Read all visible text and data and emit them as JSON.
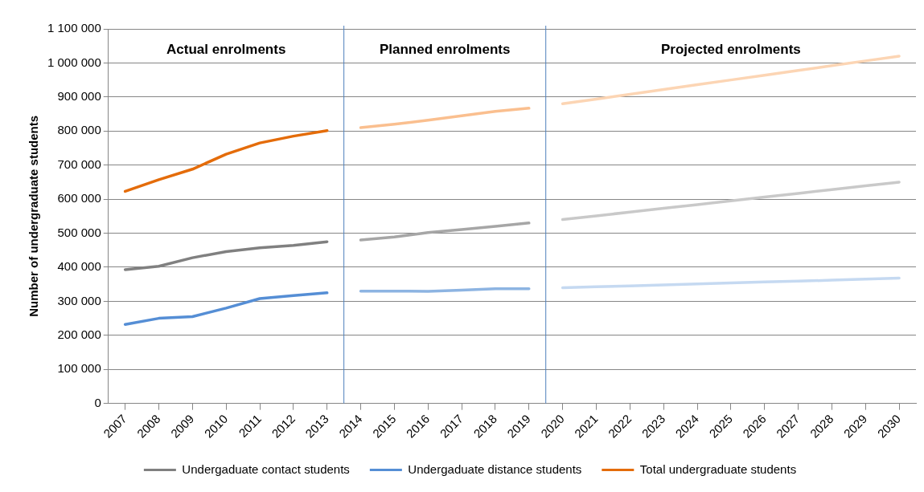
{
  "chart_data": {
    "type": "line",
    "ylabel": "Number of undergraduate students",
    "x": [
      2007,
      2008,
      2009,
      2010,
      2011,
      2012,
      2013,
      2014,
      2015,
      2016,
      2017,
      2018,
      2019,
      2020,
      2021,
      2022,
      2023,
      2024,
      2025,
      2026,
      2027,
      2028,
      2029,
      2030
    ],
    "series": [
      {
        "name": "Undergaduate contact students",
        "color": "#808080",
        "values": [
          393000,
          403000,
          428000,
          446000,
          457000,
          464000,
          475000,
          null,
          null,
          null,
          null,
          null,
          null,
          null,
          null,
          null,
          null,
          null,
          null,
          null,
          null,
          null,
          null,
          null
        ]
      },
      {
        "name": "Undergaduate distance students",
        "color": "#558ed5",
        "values": [
          232000,
          250000,
          255000,
          280000,
          308000,
          317000,
          325000,
          null,
          null,
          null,
          null,
          null,
          null,
          null,
          null,
          null,
          null,
          null,
          null,
          null,
          null,
          null,
          null,
          null
        ]
      },
      {
        "name": "Total undergraduate students",
        "color": "#e46c0a",
        "values": [
          623000,
          657000,
          688000,
          732000,
          765000,
          785000,
          801000,
          null,
          null,
          null,
          null,
          null,
          null,
          null,
          null,
          null,
          null,
          null,
          null,
          null,
          null,
          null,
          null,
          null
        ]
      },
      {
        "color": "#a6a6a6",
        "values": [
          null,
          null,
          null,
          null,
          null,
          null,
          null,
          480000,
          489000,
          502000,
          511000,
          520000,
          530000,
          null,
          null,
          null,
          null,
          null,
          null,
          null,
          null,
          null,
          null,
          null
        ]
      },
      {
        "color": "#8db4e2",
        "values": [
          null,
          null,
          null,
          null,
          null,
          null,
          null,
          330000,
          330000,
          329000,
          333000,
          337000,
          337000,
          null,
          null,
          null,
          null,
          null,
          null,
          null,
          null,
          null,
          null,
          null
        ]
      },
      {
        "color": "#fabf8f",
        "values": [
          null,
          null,
          null,
          null,
          null,
          null,
          null,
          810000,
          820000,
          832000,
          845000,
          858000,
          867000,
          null,
          null,
          null,
          null,
          null,
          null,
          null,
          null,
          null,
          null,
          null
        ]
      },
      {
        "color": "#c9c9c9",
        "values": [
          null,
          null,
          null,
          null,
          null,
          null,
          null,
          null,
          null,
          null,
          null,
          null,
          null,
          540000,
          551000,
          562000,
          573000,
          584000,
          595000,
          606000,
          617000,
          628000,
          639000,
          650000
        ]
      },
      {
        "color": "#c5d9f1",
        "values": [
          null,
          null,
          null,
          null,
          null,
          null,
          null,
          null,
          null,
          null,
          null,
          null,
          null,
          340000,
          343000,
          345000,
          348000,
          351000,
          354000,
          357000,
          359000,
          362000,
          365000,
          368000
        ]
      },
      {
        "color": "#fcd5b4",
        "values": [
          null,
          null,
          null,
          null,
          null,
          null,
          null,
          null,
          null,
          null,
          null,
          null,
          null,
          880000,
          894000,
          908000,
          922000,
          936000,
          950000,
          964000,
          978000,
          992000,
          1006000,
          1020000
        ]
      }
    ],
    "xlim": [
      2006.5,
      2030.5
    ],
    "xticks": [
      2007,
      2008,
      2009,
      2010,
      2011,
      2012,
      2013,
      2014,
      2015,
      2016,
      2017,
      2018,
      2019,
      2020,
      2021,
      2022,
      2023,
      2024,
      2025,
      2026,
      2027,
      2028,
      2029,
      2030
    ],
    "ylim": [
      0,
      1100000
    ],
    "yticks": [
      0,
      {
        "value": 100000,
        "label": "100 000"
      },
      {
        "value": 200000,
        "label": "200 000"
      },
      {
        "value": 300000,
        "label": "300 000"
      },
      {
        "value": 400000,
        "label": "400 000"
      },
      {
        "value": 500000,
        "label": "500 000"
      },
      {
        "value": 600000,
        "label": "600 000"
      },
      {
        "value": 700000,
        "label": "700 000"
      },
      {
        "value": 800000,
        "label": "800 000"
      },
      {
        "value": 900000,
        "label": "900 000"
      },
      {
        "value": 1000000,
        "label": "1 000 000"
      },
      {
        "value": 1100000,
        "label": "1 100 000"
      }
    ],
    "ref_lines": [
      {
        "axis": "x",
        "value": 2013.5,
        "color": "#4f81bd"
      },
      {
        "axis": "x",
        "value": 2019.5,
        "color": "#4f81bd"
      }
    ],
    "annotations": [
      "Actual enrolments",
      "Planned enrolments",
      "Projected enrolments"
    ],
    "grid": "y",
    "legend": "bottom",
    "marker": "none",
    "line_style": "solid"
  }
}
